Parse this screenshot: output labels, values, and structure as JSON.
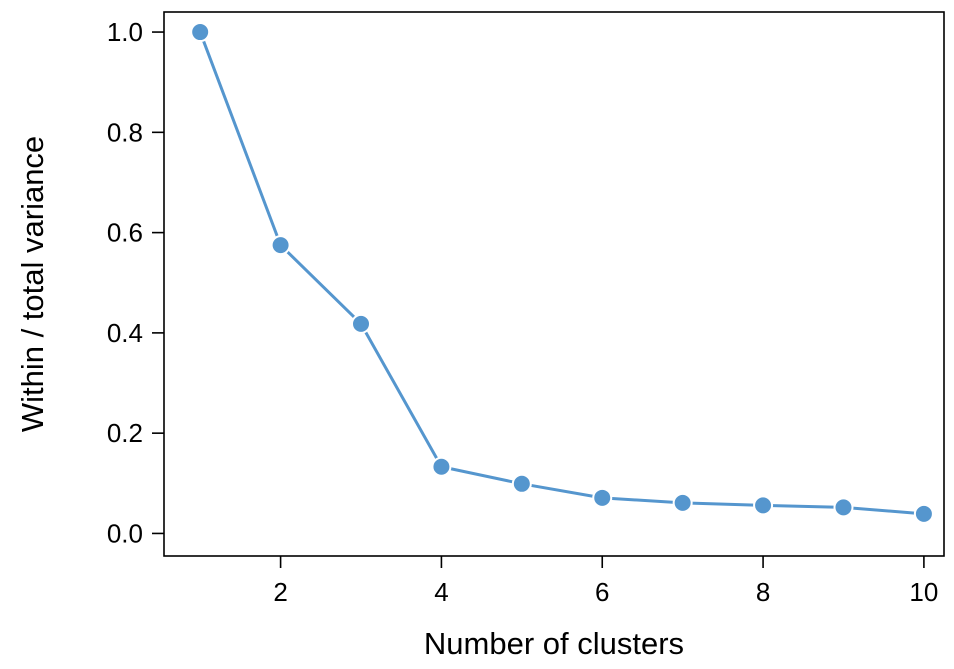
{
  "chart_data": {
    "type": "line",
    "title": "",
    "xlabel": "Number of clusters",
    "ylabel": "Within / total variance",
    "x": [
      1,
      2,
      3,
      4,
      5,
      6,
      7,
      8,
      9,
      10
    ],
    "series": [
      {
        "values": [
          1.0,
          0.575,
          0.418,
          0.133,
          0.099,
          0.071,
          0.061,
          0.056,
          0.052,
          0.039
        ]
      }
    ],
    "xlim": [
      0.55,
      10.25
    ],
    "ylim": [
      -0.045,
      1.04
    ],
    "xticks": [
      2,
      4,
      6,
      8,
      10
    ],
    "yticks": [
      0.0,
      0.2,
      0.4,
      0.6,
      0.8,
      1.0
    ],
    "xtick_labels": [
      "2",
      "4",
      "6",
      "8",
      "10"
    ],
    "ytick_labels": [
      "0.0",
      "0.2",
      "0.4",
      "0.6",
      "0.8",
      "1.0"
    ],
    "grid": false,
    "legend": "none",
    "colors": {
      "series": "#5596ce",
      "axis": "#000000"
    }
  }
}
